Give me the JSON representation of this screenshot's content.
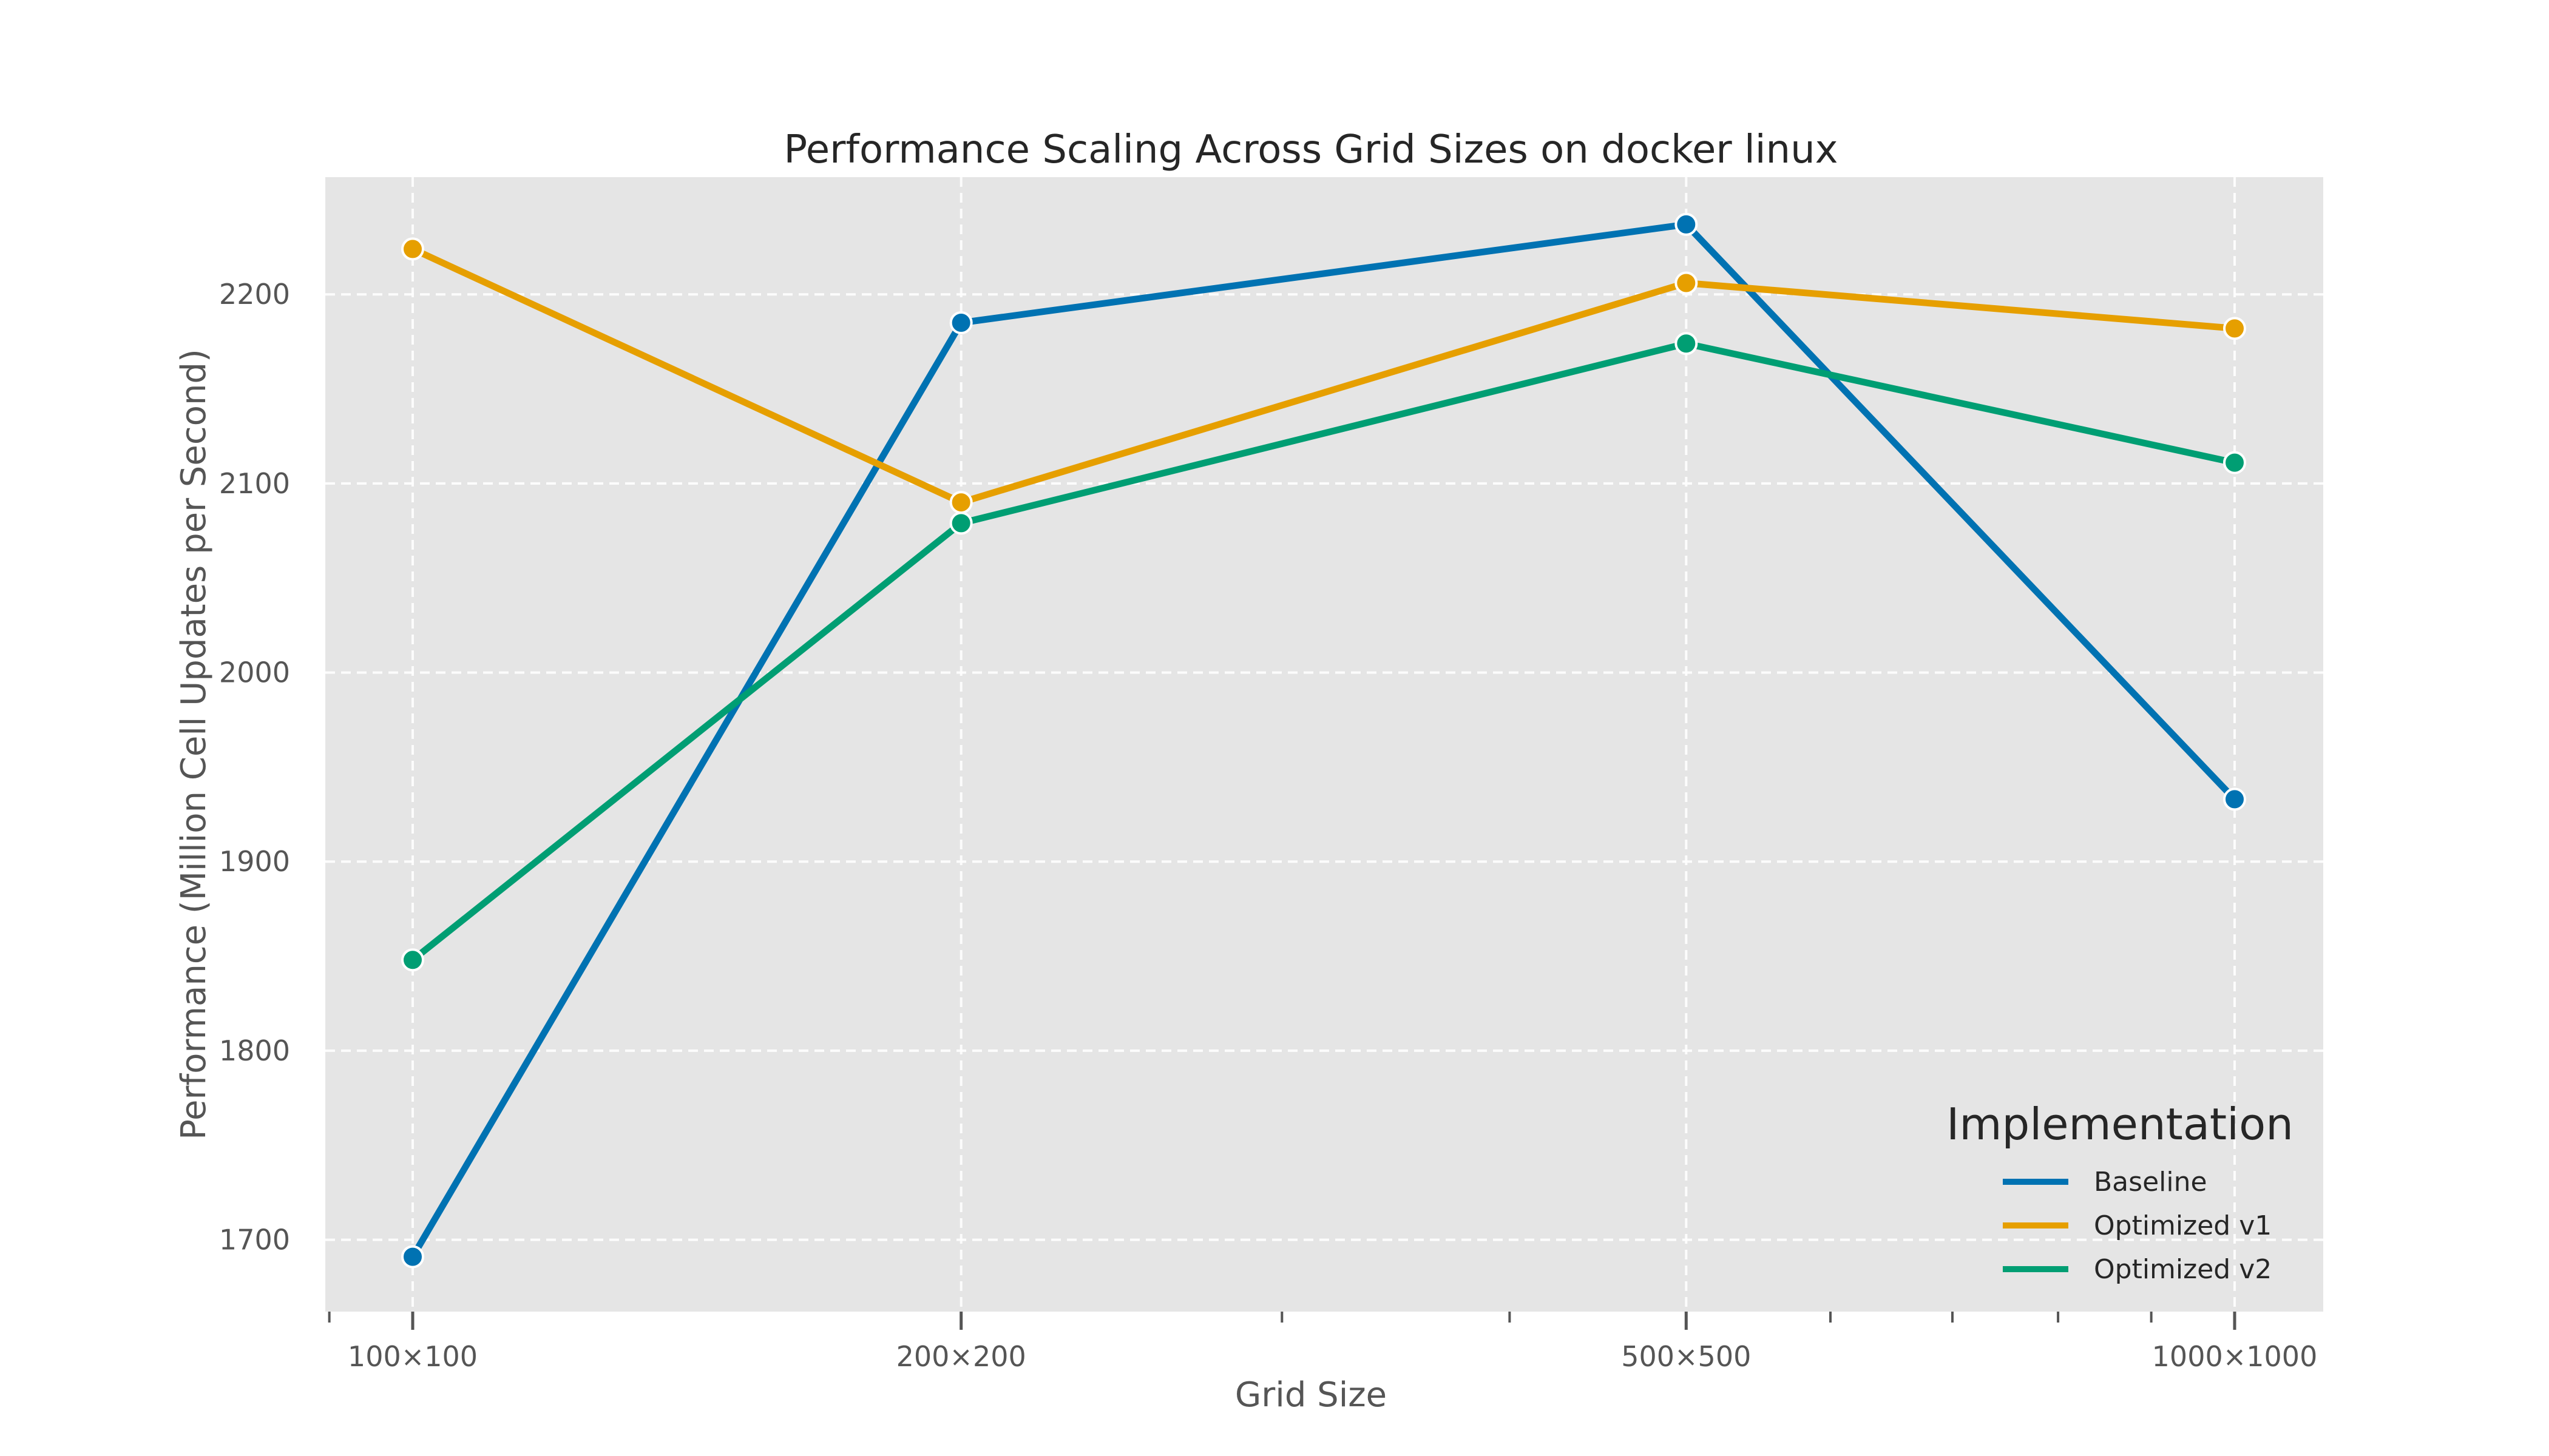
{
  "chart_data": {
    "type": "line",
    "title": "Performance Scaling Across Grid Sizes on docker linux",
    "xlabel": "Grid Size",
    "ylabel": "Performance (Million Cell Updates per Second)",
    "x_scale": "log",
    "x": [
      100,
      200,
      500,
      1000
    ],
    "x_tick_labels": [
      "100×100",
      "200×200",
      "500×500",
      "1000×1000"
    ],
    "ylim": [
      1662,
      2262
    ],
    "y_ticks": [
      1700,
      1800,
      1900,
      2000,
      2100,
      2200
    ],
    "grid": true,
    "legend": {
      "title": "Implementation",
      "placement": "bottom-right"
    },
    "series": [
      {
        "name": "Baseline",
        "color": "#0072B2",
        "values": [
          1691,
          2185,
          2237,
          1933
        ]
      },
      {
        "name": "Optimized v1",
        "color": "#E69F00",
        "values": [
          2224,
          2090,
          2206,
          2182
        ]
      },
      {
        "name": "Optimized v2",
        "color": "#009E73",
        "values": [
          1848,
          2079,
          2174,
          2111
        ]
      }
    ]
  }
}
